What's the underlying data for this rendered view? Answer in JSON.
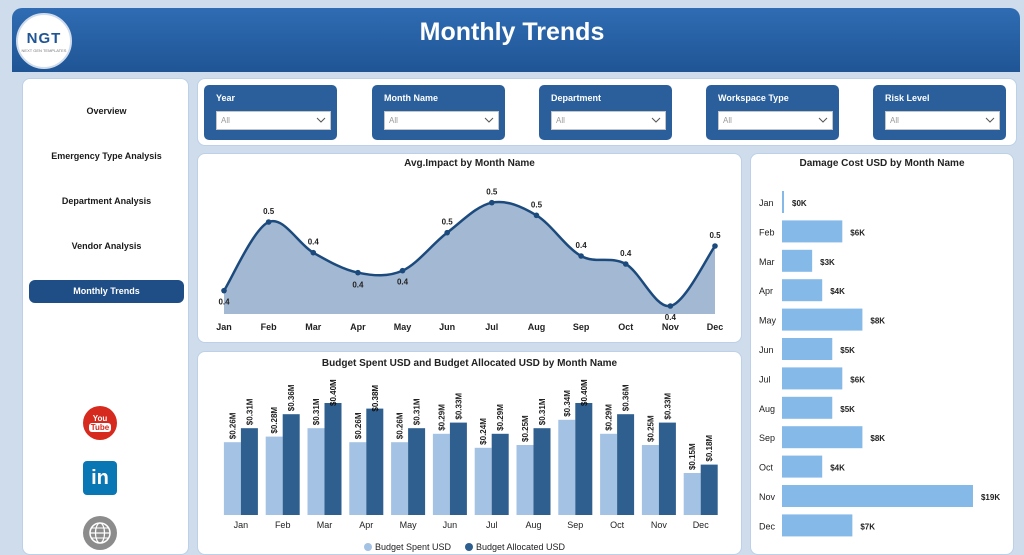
{
  "header": {
    "title": "Monthly Trends",
    "logo_text": "NGT",
    "logo_sub": "NEXT GEN TEMPLATES"
  },
  "sidebar": {
    "items": [
      {
        "label": "Overview",
        "active": false
      },
      {
        "label": "Emergency Type Analysis",
        "active": false
      },
      {
        "label": "Department Analysis",
        "active": false
      },
      {
        "label": "Vendor Analysis",
        "active": false
      },
      {
        "label": "Monthly Trends",
        "active": true
      }
    ],
    "social": {
      "youtube_top": "You",
      "youtube_bottom": "Tube",
      "linkedin": "in"
    }
  },
  "filters": [
    {
      "label": "Year",
      "value": "All"
    },
    {
      "label": "Month Name",
      "value": "All"
    },
    {
      "label": "Department",
      "value": "All"
    },
    {
      "label": "Workspace Type",
      "value": "All"
    },
    {
      "label": "Risk Level",
      "value": "All"
    }
  ],
  "colors": {
    "accent": "#1f4e86",
    "area_fill": "#a3b8d2",
    "line": "#1c4a7c",
    "light_bar": "#a4c2e3",
    "dark_bar": "#2f5f8e",
    "hbar": "#85b9e8"
  },
  "chart_data": [
    {
      "type": "area",
      "title": "Avg.Impact by Month Name",
      "categories": [
        "Jan",
        "Feb",
        "Mar",
        "Apr",
        "May",
        "Jun",
        "Jul",
        "Aug",
        "Sep",
        "Oct",
        "Nov",
        "Dec"
      ],
      "values": [
        0.4,
        0.5,
        0.4,
        0.4,
        0.4,
        0.5,
        0.5,
        0.5,
        0.4,
        0.4,
        0.4,
        0.5
      ],
      "labels": [
        "0.4",
        "0.5",
        "0.4",
        "0.4",
        "0.4",
        "0.5",
        "0.5",
        "0.5",
        "0.4",
        "0.4",
        "0.4",
        "0.5"
      ],
      "plot_values": [
        0.365,
        0.468,
        0.422,
        0.392,
        0.395,
        0.452,
        0.497,
        0.478,
        0.417,
        0.405,
        0.342,
        0.432
      ],
      "ylim": [
        0.33,
        0.51
      ]
    },
    {
      "type": "bar",
      "title": "Budget Spent USD and Budget Allocated USD by Month Name",
      "categories": [
        "Jan",
        "Feb",
        "Mar",
        "Apr",
        "May",
        "Jun",
        "Jul",
        "Aug",
        "Sep",
        "Oct",
        "Nov",
        "Dec"
      ],
      "series": [
        {
          "name": "Budget Spent USD",
          "values": [
            0.26,
            0.28,
            0.31,
            0.26,
            0.26,
            0.29,
            0.24,
            0.25,
            0.34,
            0.29,
            0.25,
            0.15
          ],
          "labels": [
            "$0.26M",
            "$0.28M",
            "$0.31M",
            "$0.26M",
            "$0.26M",
            "$0.29M",
            "$0.24M",
            "$0.25M",
            "$0.34M",
            "$0.29M",
            "$0.25M",
            "$0.15M"
          ]
        },
        {
          "name": "Budget Allocated USD",
          "values": [
            0.31,
            0.36,
            0.4,
            0.38,
            0.31,
            0.33,
            0.29,
            0.31,
            0.4,
            0.36,
            0.33,
            0.18
          ],
          "labels": [
            "$0.31M",
            "$0.36M",
            "$0.40M",
            "$0.38M",
            "$0.31M",
            "$0.33M",
            "$0.29M",
            "$0.31M",
            "$0.40M",
            "$0.36M",
            "$0.33M",
            "$0.18M"
          ]
        }
      ],
      "ylim": [
        0,
        0.5
      ]
    },
    {
      "type": "bar",
      "orientation": "horizontal",
      "title": "Damage Cost USD by Month Name",
      "categories": [
        "Jan",
        "Feb",
        "Mar",
        "Apr",
        "May",
        "Jun",
        "Jul",
        "Aug",
        "Sep",
        "Oct",
        "Nov",
        "Dec"
      ],
      "values": [
        0.2,
        6,
        3,
        4,
        8,
        5,
        6,
        5,
        8,
        4,
        19,
        7
      ],
      "labels": [
        "$0K",
        "$6K",
        "$3K",
        "$4K",
        "$8K",
        "$5K",
        "$6K",
        "$5K",
        "$8K",
        "$4K",
        "$19K",
        "$7K"
      ],
      "xlim": [
        0,
        19.5
      ]
    }
  ]
}
